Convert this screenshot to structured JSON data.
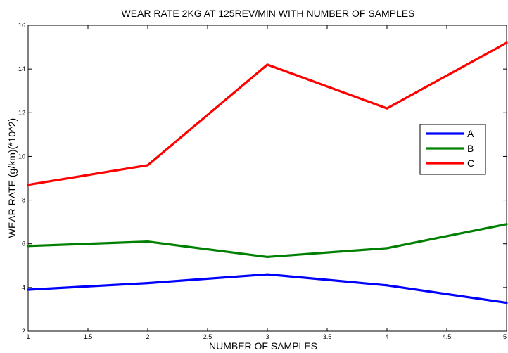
{
  "chart_data": {
    "type": "line",
    "title": "WEAR RATE 2KG AT 125REV/MIN WITH NUMBER OF SAMPLES",
    "xlabel": "NUMBER OF SAMPLES",
    "ylabel": "WEAR RATE (g/km)(*10^2)",
    "xlim": [
      1,
      5
    ],
    "ylim": [
      2,
      16
    ],
    "x_ticks": [
      1,
      1.5,
      2,
      2.5,
      3,
      3.5,
      4,
      4.5,
      5
    ],
    "x_tick_labels": [
      "1",
      "1.5",
      "2",
      "2.5",
      "3",
      "3.5",
      "4",
      "4.5",
      "5"
    ],
    "y_ticks": [
      2,
      4,
      6,
      8,
      10,
      12,
      14,
      16
    ],
    "y_tick_labels": [
      "2",
      "4",
      "6",
      "8",
      "10",
      "12",
      "14",
      "16"
    ],
    "grid": false,
    "legend_position": "right",
    "x": [
      1,
      2,
      3,
      4,
      5
    ],
    "series": [
      {
        "name": "A",
        "color": "#0000ff",
        "values": [
          3.9,
          4.2,
          4.6,
          4.1,
          3.3
        ]
      },
      {
        "name": "B",
        "color": "#008000",
        "values": [
          5.9,
          6.1,
          5.4,
          5.8,
          6.9
        ]
      },
      {
        "name": "C",
        "color": "#ff0000",
        "values": [
          8.7,
          9.6,
          14.2,
          12.2,
          15.2
        ]
      }
    ]
  }
}
